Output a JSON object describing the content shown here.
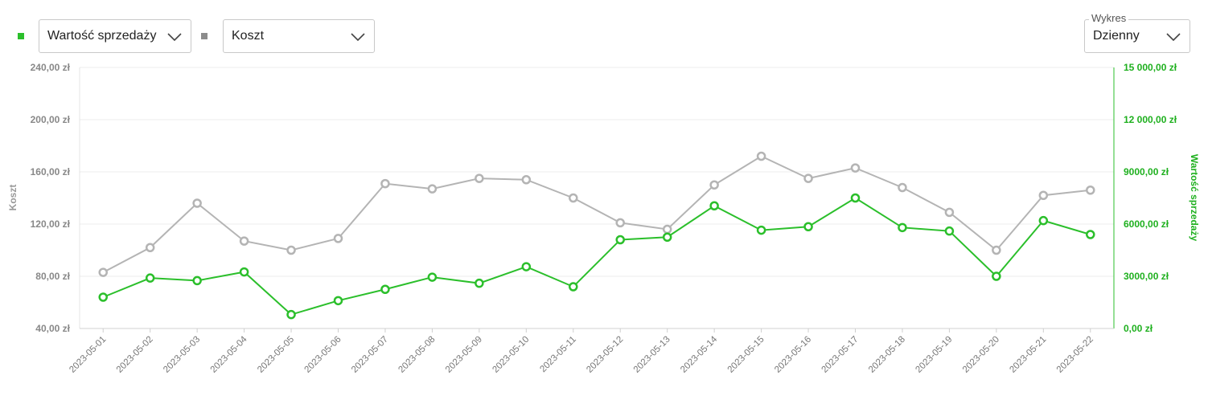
{
  "controls": {
    "series1_select": {
      "value": "Wartość sprzedaży",
      "color": "#2bbf2b"
    },
    "series2_select": {
      "value": "Koszt",
      "color": "#8c8c8c"
    },
    "chart_type_select": {
      "legend": "Wykres",
      "value": "Dzienny"
    }
  },
  "chart_data": {
    "type": "line",
    "x": [
      "2023-05-01",
      "2023-05-02",
      "2023-05-03",
      "2023-05-04",
      "2023-05-05",
      "2023-05-06",
      "2023-05-07",
      "2023-05-08",
      "2023-05-09",
      "2023-05-10",
      "2023-05-11",
      "2023-05-12",
      "2023-05-13",
      "2023-05-14",
      "2023-05-15",
      "2023-05-16",
      "2023-05-17",
      "2023-05-18",
      "2023-05-19",
      "2023-05-20",
      "2023-05-21",
      "2023-05-22"
    ],
    "series": [
      {
        "name": "Koszt",
        "axis": "left",
        "color": "#b4b4b4",
        "values": [
          83,
          102,
          136,
          107,
          100,
          109,
          151,
          147,
          155,
          154,
          140,
          121,
          116,
          150,
          172,
          155,
          163,
          148,
          129,
          100,
          142,
          146
        ]
      },
      {
        "name": "Wartość sprzedaży",
        "axis": "right",
        "color": "#2bbf2b",
        "values": [
          1800,
          2900,
          2750,
          3250,
          800,
          1600,
          2250,
          2950,
          2600,
          3550,
          2400,
          5100,
          5250,
          7050,
          5650,
          5850,
          7500,
          5800,
          5600,
          3000,
          6200,
          5400
        ]
      }
    ],
    "left_axis": {
      "label": "Koszt",
      "ylim": [
        40,
        240
      ],
      "ticks": [
        "40,00 zł",
        "80,00 zł",
        "120,00 zł",
        "160,00 zł",
        "200,00 zł",
        "240,00 zł"
      ]
    },
    "right_axis": {
      "label": "Wartość sprzedaży",
      "ylim": [
        0,
        15000
      ],
      "ticks": [
        "0,00 zł",
        "3000,00 zł",
        "6000,00 zł",
        "9000,00 zł",
        "12 000,00 zł",
        "15 000,00 zł"
      ]
    },
    "grid": true
  }
}
